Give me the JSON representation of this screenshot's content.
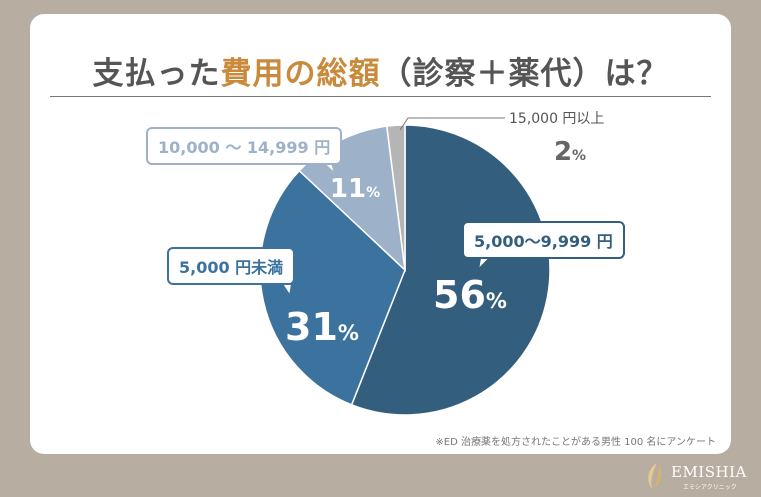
{
  "title": {
    "part1": "支払った",
    "part2": "費用の総額",
    "part3": "（診察＋薬代）は？"
  },
  "footnote": "※ED 治療薬を処方されたことがある男性 100 名にアンケート",
  "logo": {
    "name": "EMISHIA",
    "sub": "エミシアクリニック"
  },
  "colors": {
    "background": "#b8ada1",
    "accent": "#c98a3c",
    "title": "#555555"
  },
  "chart_data": {
    "type": "pie",
    "title": "支払った費用の総額（診察＋薬代）は？",
    "start": "top",
    "direction": "clockwise",
    "slices": [
      {
        "label": "5,000〜9,999 円",
        "value": 56,
        "display": "56",
        "color": "#345e7d"
      },
      {
        "label": "5,000 円未満",
        "value": 31,
        "display": "31",
        "color": "#3b739e"
      },
      {
        "label": "10,000 〜 14,999 円",
        "value": 11,
        "display": "11",
        "color": "#9db1c8"
      },
      {
        "label": "15,000 円以上",
        "value": 2,
        "display": "2",
        "color": "#b5b5b5"
      }
    ],
    "unit": "%"
  }
}
